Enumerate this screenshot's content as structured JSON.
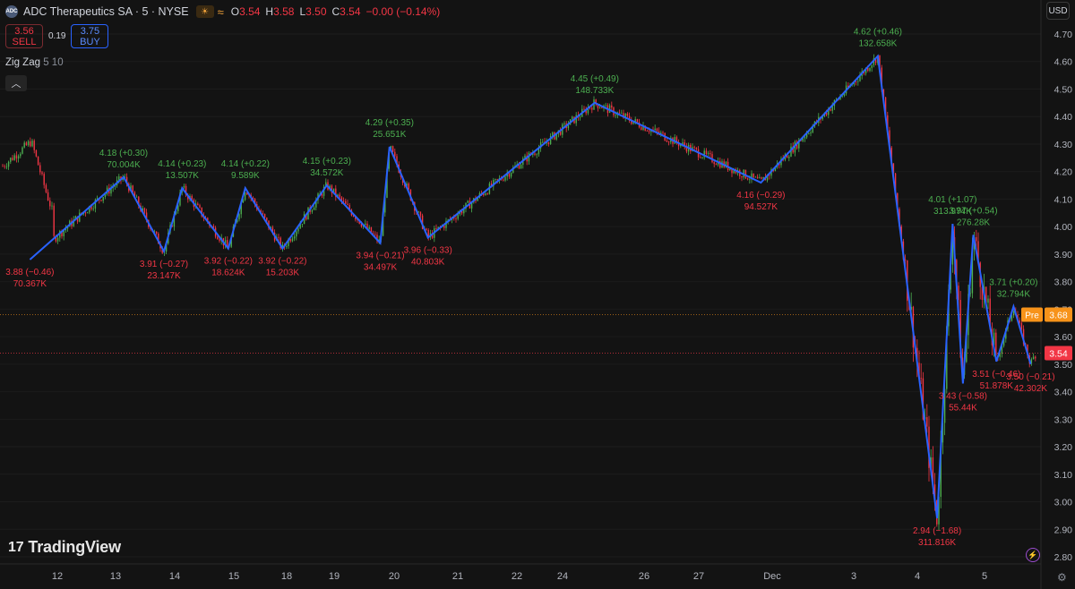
{
  "header": {
    "logo_text": "ADC",
    "title": "ADC Therapeutics SA · 5 · NYSE",
    "market_icon": "sun-moon-icon",
    "extended_icon": "≈",
    "ohlc": [
      {
        "k": "O",
        "v": "3.54"
      },
      {
        "k": "H",
        "v": "3.58"
      },
      {
        "k": "L",
        "v": "3.50"
      },
      {
        "k": "C",
        "v": "3.54"
      }
    ],
    "change": "−0.00 (−0.14%)"
  },
  "trade": {
    "sell_price": "3.56",
    "sell_label": "SELL",
    "spread": "0.19",
    "buy_price": "3.75",
    "buy_label": "BUY"
  },
  "indicator": {
    "name": "Zig Zag",
    "params": "5 10",
    "collapse_icon": "chevron-up-icon"
  },
  "currency": "USD",
  "brand": "TradingView",
  "colors": {
    "up": "#4caf50",
    "down": "#f23645",
    "zigzag": "#2962ff",
    "pre": "#f7931a",
    "bg": "#131313"
  },
  "chart_data": {
    "type": "line",
    "symbol": "ADC Therapeutics SA",
    "interval": "5",
    "ylim": [
      2.75,
      4.75
    ],
    "y_ticks": [
      "2.80",
      "2.90",
      "3.00",
      "3.10",
      "3.20",
      "3.30",
      "3.40",
      "3.50",
      "3.60",
      "3.70",
      "3.80",
      "3.90",
      "4.00",
      "4.10",
      "4.20",
      "4.30",
      "4.40",
      "4.50",
      "4.60",
      "4.70"
    ],
    "x_ticks": [
      "12",
      "13",
      "14",
      "15",
      "18",
      "19",
      "20",
      "21",
      "22",
      "24",
      "26",
      "27",
      "Dec",
      "3",
      "4",
      "5"
    ],
    "price_labels": [
      {
        "label": "Pre",
        "value": 3.68,
        "text": "3.68",
        "color": "#f7931a"
      },
      {
        "label": "",
        "value": 3.54,
        "text": "3.54",
        "color": "#f23645"
      }
    ],
    "zigzag": [
      {
        "x": "11/12 13:00",
        "y": 3.88,
        "text": "3.88 (−0.46)",
        "vol": "70.367K",
        "dir": "low"
      },
      {
        "x": "11/14 10:30",
        "y": 4.18,
        "text": "4.18 (+0.30)",
        "vol": "70.004K",
        "dir": "high"
      },
      {
        "x": "11/14 15:00",
        "y": 3.91,
        "text": "3.91 (−0.27)",
        "vol": "23.147K",
        "dir": "low"
      },
      {
        "x": "11/15 10:30",
        "y": 4.14,
        "text": "4.14 (+0.23)",
        "vol": "13.507K",
        "dir": "high"
      },
      {
        "x": "11/15 15:30",
        "y": 3.92,
        "text": "3.92 (−0.22)",
        "vol": "18.624K",
        "dir": "low"
      },
      {
        "x": "11/18 11:00",
        "y": 4.14,
        "text": "4.14 (+0.22)",
        "vol": "9.589K",
        "dir": "high"
      },
      {
        "x": "11/18 15:30",
        "y": 3.92,
        "text": "3.92 (−0.22)",
        "vol": "15.203K",
        "dir": "low"
      },
      {
        "x": "11/19 15:00",
        "y": 4.15,
        "text": "4.15 (+0.23)",
        "vol": "34.572K",
        "dir": "high"
      },
      {
        "x": "11/20 14:30",
        "y": 3.94,
        "text": "3.94 (−0.21)",
        "vol": "34.497K",
        "dir": "low"
      },
      {
        "x": "11/20 15:30",
        "y": 4.29,
        "text": "4.29 (+0.35)",
        "vol": "25.651K",
        "dir": "high"
      },
      {
        "x": "11/21 13:00",
        "y": 3.96,
        "text": "3.96 (−0.33)",
        "vol": "40.803K",
        "dir": "low"
      },
      {
        "x": "11/25 12:00",
        "y": 4.45,
        "text": "4.45 (+0.49)",
        "vol": "148.733K",
        "dir": "high"
      },
      {
        "x": "11/27 15:00",
        "y": 4.16,
        "text": "4.16 (−0.29)",
        "vol": "94.527K",
        "dir": "low"
      },
      {
        "x": "12/03 12:00",
        "y": 4.62,
        "text": "4.62 (+0.46)",
        "vol": "132.658K",
        "dir": "high"
      },
      {
        "x": "12/04 11:30",
        "y": 2.94,
        "text": "2.94 (−1.68)",
        "vol": "311.816K",
        "dir": "low"
      },
      {
        "x": "12/04 13:00",
        "y": 4.01,
        "text": "4.01 (+1.07)",
        "vol": "313.974K",
        "dir": "high"
      },
      {
        "x": "12/04 14:00",
        "y": 3.43,
        "text": "3.43 (−0.58)",
        "vol": "55.44K",
        "dir": "low"
      },
      {
        "x": "12/04 15:00",
        "y": 3.97,
        "text": "3.97 (+0.54)",
        "vol": "276.28K",
        "dir": "high"
      },
      {
        "x": "12/05 11:00",
        "y": 3.51,
        "text": "3.51 (−0.46)",
        "vol": "51.878K",
        "dir": "low"
      },
      {
        "x": "12/05 13:00",
        "y": 3.71,
        "text": "3.71 (+0.20)",
        "vol": "32.794K",
        "dir": "high"
      },
      {
        "x": "12/05 15:00",
        "y": 3.5,
        "text": "3.50 (−0.21)",
        "vol": "42.302K",
        "dir": "low"
      }
    ]
  }
}
